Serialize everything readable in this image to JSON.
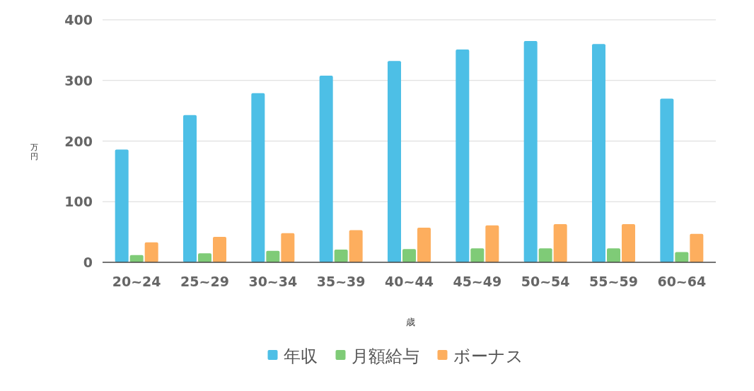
{
  "chart_data": {
    "type": "bar",
    "categories": [
      "20~24",
      "25~29",
      "30~34",
      "35~39",
      "40~44",
      "45~49",
      "50~54",
      "55~59",
      "60~64"
    ],
    "series": [
      {
        "name": "年収",
        "color": "#4dbfe6",
        "values": [
          186,
          243,
          279,
          308,
          332,
          351,
          365,
          360,
          270
        ]
      },
      {
        "name": "月額給与",
        "color": "#7fcb77",
        "values": [
          12,
          15,
          19,
          21,
          22,
          23,
          23,
          23,
          17
        ]
      },
      {
        "name": "ボーナス",
        "color": "#fdae5e",
        "values": [
          33,
          42,
          48,
          53,
          57,
          61,
          63,
          63,
          47
        ]
      }
    ],
    "xlabel": "歳",
    "ylabel": "万円",
    "ylim": [
      0,
      400
    ],
    "yticks": [
      0,
      100,
      200,
      300,
      400
    ],
    "grid": "y",
    "legend": "bottom"
  }
}
